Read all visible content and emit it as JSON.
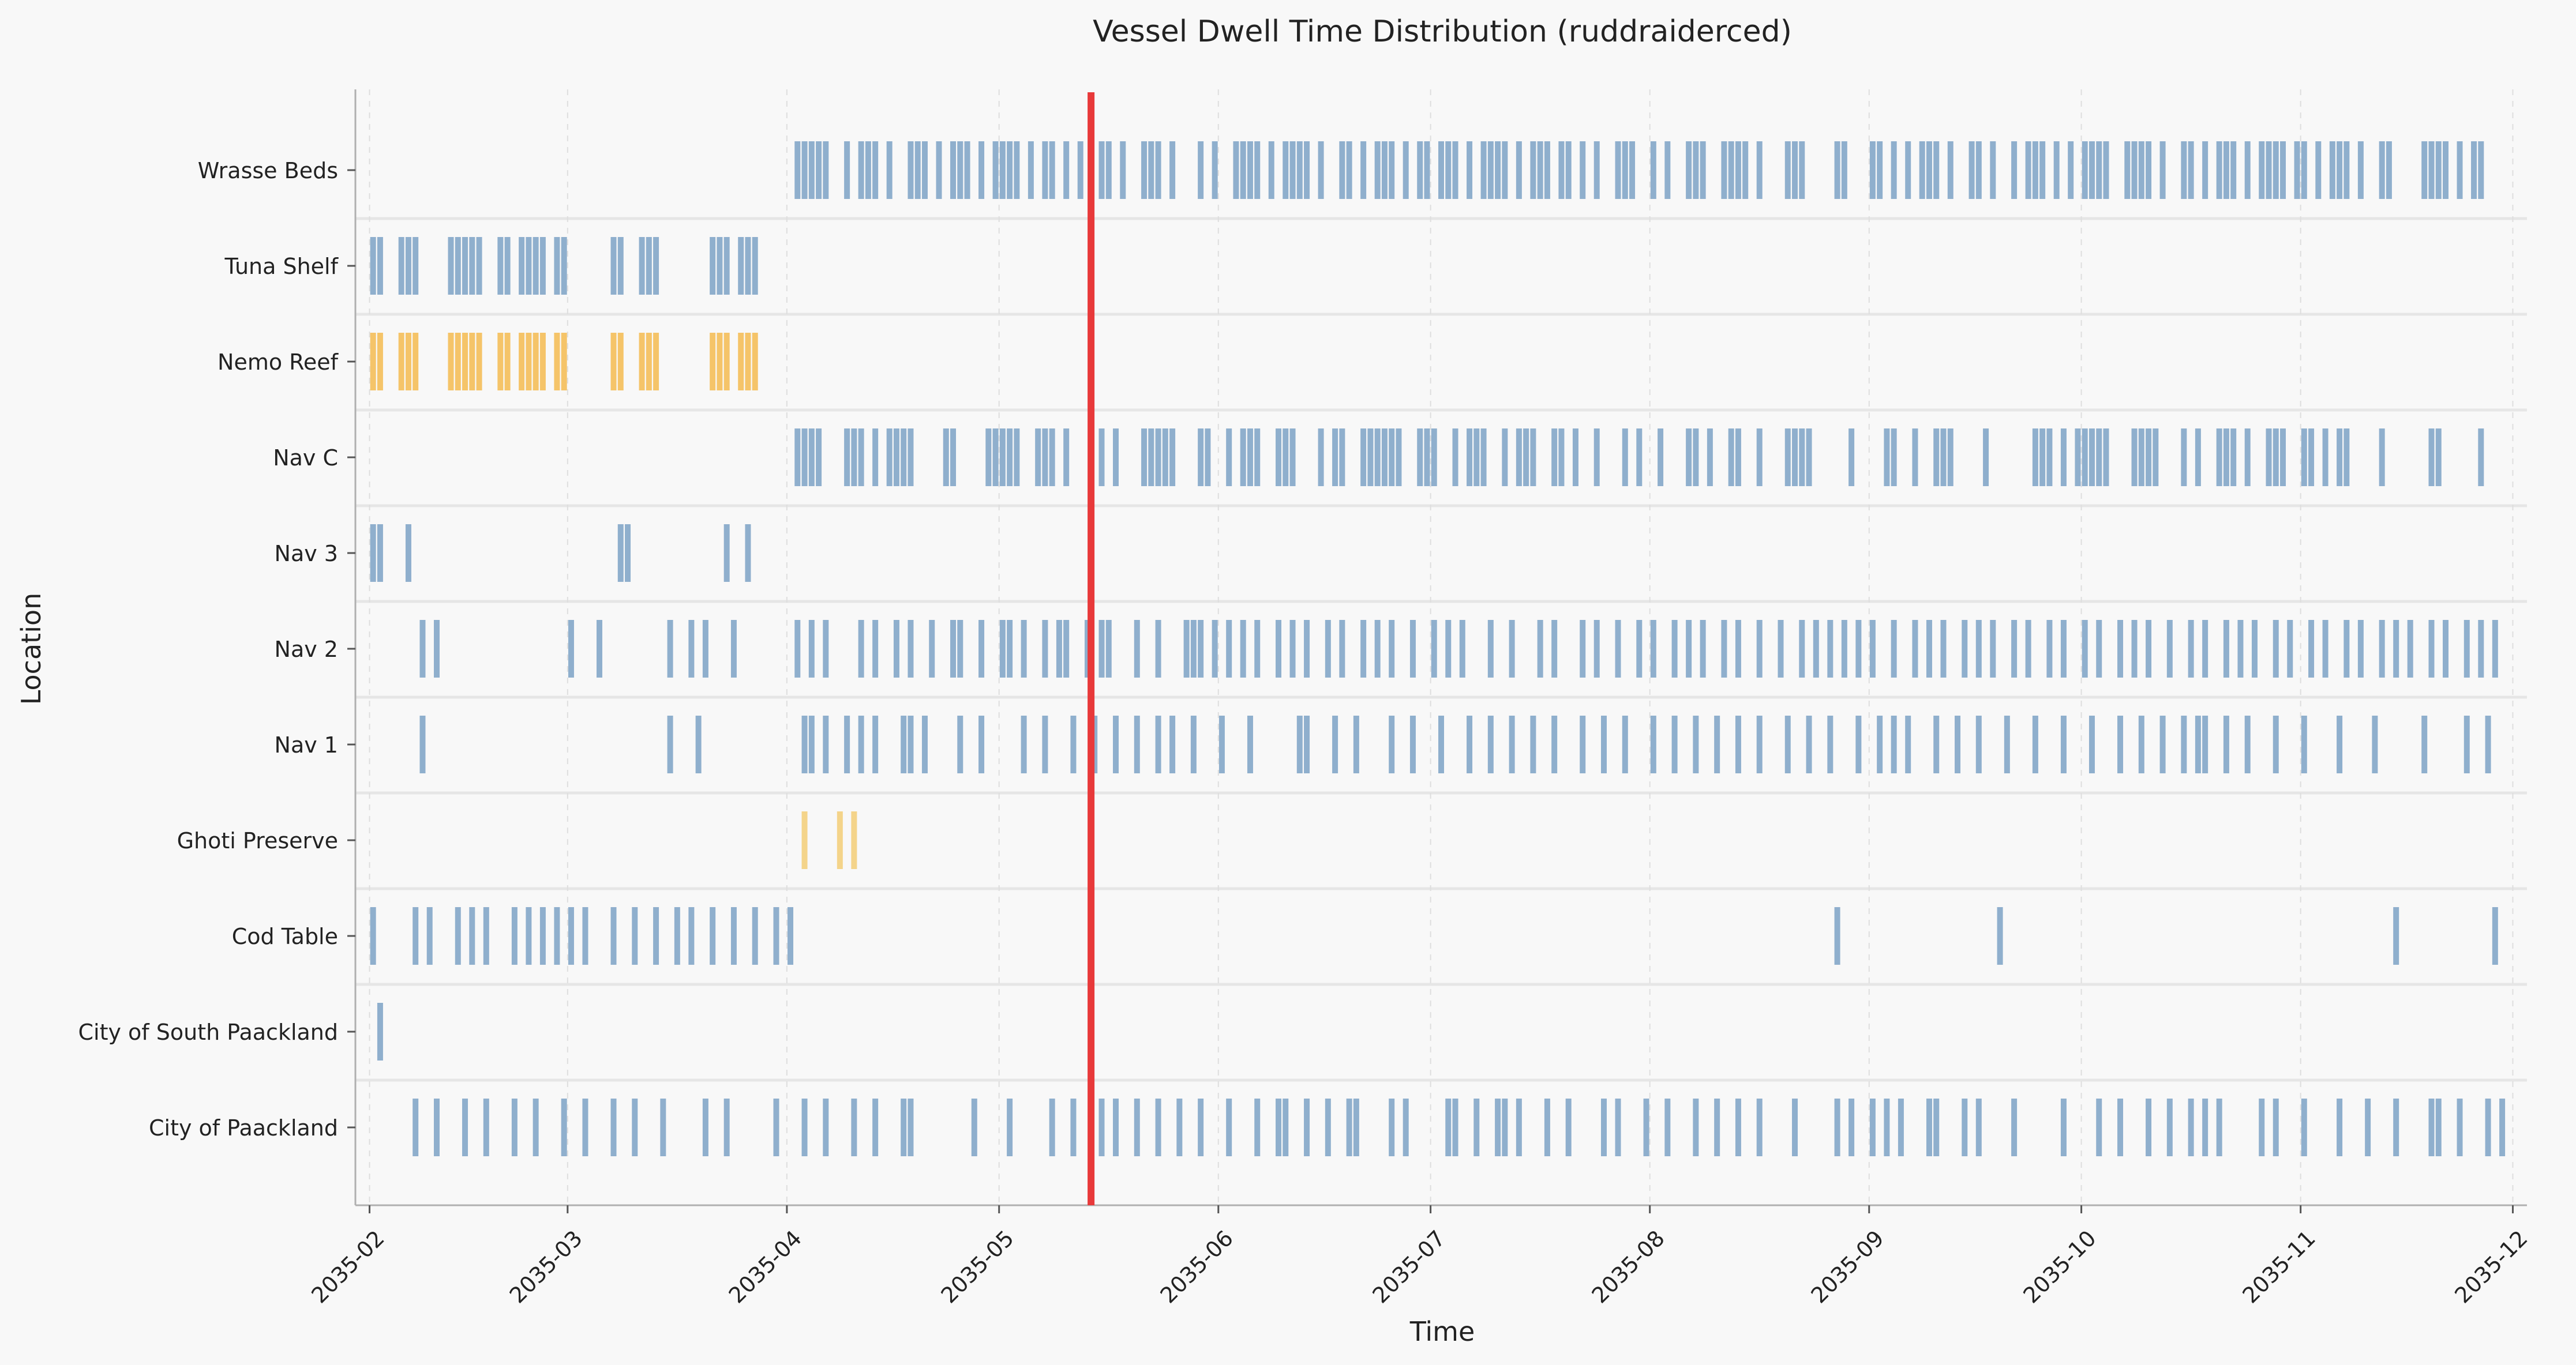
{
  "chart_data": {
    "type": "event-timeline",
    "title": "Vessel Dwell Time Distribution (ruddraiderced)",
    "xlabel": "Time",
    "ylabel": "Location",
    "xlim": [
      "2035-01-30",
      "2035-12-03"
    ],
    "x_ticks": [
      "2035-02",
      "2035-03",
      "2035-04",
      "2035-05",
      "2035-06",
      "2035-07",
      "2035-08",
      "2035-09",
      "2035-10",
      "2035-11",
      "2035-12"
    ],
    "grid": true,
    "current_time_marker": {
      "date": "2035-05-14",
      "color": "#e8393a"
    },
    "colors": {
      "default": "#4a7fb0",
      "highlight": "#f4a20a",
      "ghoti": "#f2bc41"
    },
    "categories": [
      "Wrasse Beds",
      "Tuna Shelf",
      "Nemo Reef",
      "Nav C",
      "Nav 3",
      "Nav 2",
      "Nav 1",
      "Ghoti Preserve",
      "Cod Table",
      "City of South Paackland",
      "City of Paackland"
    ],
    "series": [
      {
        "name": "Wrasse Beds",
        "color": "#4a7fb0",
        "events": [
          "2035-04-02",
          "2035-04-03",
          "2035-04-04",
          "2035-04-05",
          "2035-04-06",
          "2035-04-09",
          "2035-04-11",
          "2035-04-12",
          "2035-04-13",
          "2035-04-15",
          "2035-04-18",
          "2035-04-19",
          "2035-04-20",
          "2035-04-22",
          "2035-04-24",
          "2035-04-25",
          "2035-04-26",
          "2035-04-28",
          "2035-04-30",
          "2035-05-01",
          "2035-05-02",
          "2035-05-03",
          "2035-05-05",
          "2035-05-07",
          "2035-05-08",
          "2035-05-10",
          "2035-05-12",
          "2035-05-15",
          "2035-05-16",
          "2035-05-18",
          "2035-05-21",
          "2035-05-22",
          "2035-05-23",
          "2035-05-25",
          "2035-05-29",
          "2035-05-31",
          "2035-06-03",
          "2035-06-04",
          "2035-06-05",
          "2035-06-06",
          "2035-06-08",
          "2035-06-10",
          "2035-06-11",
          "2035-06-12",
          "2035-06-13",
          "2035-06-15",
          "2035-06-18",
          "2035-06-19",
          "2035-06-21",
          "2035-06-23",
          "2035-06-24",
          "2035-06-25",
          "2035-06-27",
          "2035-06-29",
          "2035-06-30",
          "2035-07-02",
          "2035-07-03",
          "2035-07-04",
          "2035-07-06",
          "2035-07-08",
          "2035-07-09",
          "2035-07-10",
          "2035-07-11",
          "2035-07-13",
          "2035-07-15",
          "2035-07-16",
          "2035-07-17",
          "2035-07-19",
          "2035-07-20",
          "2035-07-22",
          "2035-07-24",
          "2035-07-27",
          "2035-07-28",
          "2035-07-29",
          "2035-08-01",
          "2035-08-03",
          "2035-08-06",
          "2035-08-07",
          "2035-08-08",
          "2035-08-11",
          "2035-08-12",
          "2035-08-13",
          "2035-08-14",
          "2035-08-16",
          "2035-08-20",
          "2035-08-21",
          "2035-08-22",
          "2035-08-27",
          "2035-08-28",
          "2035-09-01",
          "2035-09-02",
          "2035-09-04",
          "2035-09-06",
          "2035-09-08",
          "2035-09-09",
          "2035-09-10",
          "2035-09-12",
          "2035-09-15",
          "2035-09-16",
          "2035-09-18",
          "2035-09-21",
          "2035-09-23",
          "2035-09-24",
          "2035-09-25",
          "2035-09-27",
          "2035-09-29",
          "2035-10-01",
          "2035-10-02",
          "2035-10-03",
          "2035-10-04",
          "2035-10-07",
          "2035-10-08",
          "2035-10-09",
          "2035-10-10",
          "2035-10-12",
          "2035-10-15",
          "2035-10-16",
          "2035-10-18",
          "2035-10-20",
          "2035-10-21",
          "2035-10-22",
          "2035-10-24",
          "2035-10-26",
          "2035-10-27",
          "2035-10-28",
          "2035-10-29",
          "2035-10-31",
          "2035-11-01",
          "2035-11-03",
          "2035-11-05",
          "2035-11-06",
          "2035-11-07",
          "2035-11-09",
          "2035-11-12",
          "2035-11-13",
          "2035-11-18",
          "2035-11-19",
          "2035-11-20",
          "2035-11-21",
          "2035-11-23",
          "2035-11-25",
          "2035-11-26"
        ]
      },
      {
        "name": "Tuna Shelf",
        "color": "#4a7fb0",
        "events": [
          "2035-02-01",
          "2035-02-02",
          "2035-02-05",
          "2035-02-06",
          "2035-02-07",
          "2035-02-12",
          "2035-02-13",
          "2035-02-14",
          "2035-02-15",
          "2035-02-16",
          "2035-02-19",
          "2035-02-20",
          "2035-02-22",
          "2035-02-23",
          "2035-02-24",
          "2035-02-25",
          "2035-02-27",
          "2035-02-28",
          "2035-03-07",
          "2035-03-08",
          "2035-03-11",
          "2035-03-12",
          "2035-03-13",
          "2035-03-21",
          "2035-03-22",
          "2035-03-23",
          "2035-03-25",
          "2035-03-26",
          "2035-03-27"
        ]
      },
      {
        "name": "Nemo Reef",
        "color": "#f4a20a",
        "events": [
          "2035-02-01",
          "2035-02-02",
          "2035-02-05",
          "2035-02-06",
          "2035-02-07",
          "2035-02-12",
          "2035-02-13",
          "2035-02-14",
          "2035-02-15",
          "2035-02-16",
          "2035-02-19",
          "2035-02-20",
          "2035-02-22",
          "2035-02-23",
          "2035-02-24",
          "2035-02-25",
          "2035-02-27",
          "2035-02-28",
          "2035-03-07",
          "2035-03-08",
          "2035-03-11",
          "2035-03-12",
          "2035-03-13",
          "2035-03-21",
          "2035-03-22",
          "2035-03-23",
          "2035-03-25",
          "2035-03-26",
          "2035-03-27"
        ]
      },
      {
        "name": "Nav C",
        "color": "#4a7fb0",
        "events": [
          "2035-04-02",
          "2035-04-03",
          "2035-04-04",
          "2035-04-05",
          "2035-04-09",
          "2035-04-10",
          "2035-04-11",
          "2035-04-13",
          "2035-04-15",
          "2035-04-16",
          "2035-04-17",
          "2035-04-18",
          "2035-04-23",
          "2035-04-24",
          "2035-04-29",
          "2035-04-30",
          "2035-05-01",
          "2035-05-02",
          "2035-05-03",
          "2035-05-06",
          "2035-05-07",
          "2035-05-08",
          "2035-05-10",
          "2035-05-15",
          "2035-05-17",
          "2035-05-21",
          "2035-05-22",
          "2035-05-23",
          "2035-05-24",
          "2035-05-25",
          "2035-05-29",
          "2035-05-30",
          "2035-06-02",
          "2035-06-04",
          "2035-06-05",
          "2035-06-06",
          "2035-06-09",
          "2035-06-10",
          "2035-06-11",
          "2035-06-15",
          "2035-06-17",
          "2035-06-18",
          "2035-06-21",
          "2035-06-22",
          "2035-06-23",
          "2035-06-24",
          "2035-06-25",
          "2035-06-26",
          "2035-06-29",
          "2035-06-30",
          "2035-07-01",
          "2035-07-04",
          "2035-07-06",
          "2035-07-07",
          "2035-07-08",
          "2035-07-11",
          "2035-07-13",
          "2035-07-14",
          "2035-07-15",
          "2035-07-18",
          "2035-07-19",
          "2035-07-21",
          "2035-07-24",
          "2035-07-28",
          "2035-07-30",
          "2035-08-02",
          "2035-08-06",
          "2035-08-07",
          "2035-08-09",
          "2035-08-12",
          "2035-08-13",
          "2035-08-16",
          "2035-08-20",
          "2035-08-21",
          "2035-08-22",
          "2035-08-23",
          "2035-08-29",
          "2035-09-03",
          "2035-09-04",
          "2035-09-07",
          "2035-09-10",
          "2035-09-11",
          "2035-09-12",
          "2035-09-17",
          "2035-09-24",
          "2035-09-25",
          "2035-09-26",
          "2035-09-28",
          "2035-09-30",
          "2035-10-01",
          "2035-10-02",
          "2035-10-03",
          "2035-10-04",
          "2035-10-08",
          "2035-10-09",
          "2035-10-10",
          "2035-10-11",
          "2035-10-15",
          "2035-10-17",
          "2035-10-20",
          "2035-10-21",
          "2035-10-22",
          "2035-10-24",
          "2035-10-27",
          "2035-10-28",
          "2035-10-29",
          "2035-11-01",
          "2035-11-02",
          "2035-11-04",
          "2035-11-06",
          "2035-11-07",
          "2035-11-12",
          "2035-11-19",
          "2035-11-20",
          "2035-11-26"
        ]
      },
      {
        "name": "Nav 3",
        "color": "#4a7fb0",
        "events": [
          "2035-02-01",
          "2035-02-02",
          "2035-02-06",
          "2035-03-08",
          "2035-03-09",
          "2035-03-23",
          "2035-03-26"
        ]
      },
      {
        "name": "Nav 2",
        "color": "#4a7fb0",
        "events": [
          "2035-02-08",
          "2035-02-10",
          "2035-03-01",
          "2035-03-05",
          "2035-03-15",
          "2035-03-18",
          "2035-03-20",
          "2035-03-24",
          "2035-04-02",
          "2035-04-04",
          "2035-04-06",
          "2035-04-11",
          "2035-04-13",
          "2035-04-16",
          "2035-04-18",
          "2035-04-21",
          "2035-04-24",
          "2035-04-25",
          "2035-04-28",
          "2035-05-01",
          "2035-05-02",
          "2035-05-04",
          "2035-05-07",
          "2035-05-09",
          "2035-05-10",
          "2035-05-13",
          "2035-05-15",
          "2035-05-16",
          "2035-05-20",
          "2035-05-23",
          "2035-05-27",
          "2035-05-28",
          "2035-05-29",
          "2035-05-31",
          "2035-06-02",
          "2035-06-04",
          "2035-06-06",
          "2035-06-09",
          "2035-06-11",
          "2035-06-13",
          "2035-06-16",
          "2035-06-18",
          "2035-06-21",
          "2035-06-23",
          "2035-06-25",
          "2035-06-28",
          "2035-07-01",
          "2035-07-03",
          "2035-07-05",
          "2035-07-09",
          "2035-07-12",
          "2035-07-16",
          "2035-07-18",
          "2035-07-22",
          "2035-07-24",
          "2035-07-27",
          "2035-07-30",
          "2035-08-01",
          "2035-08-04",
          "2035-08-06",
          "2035-08-08",
          "2035-08-11",
          "2035-08-13",
          "2035-08-16",
          "2035-08-19",
          "2035-08-22",
          "2035-08-24",
          "2035-08-26",
          "2035-08-28",
          "2035-08-30",
          "2035-09-01",
          "2035-09-04",
          "2035-09-07",
          "2035-09-09",
          "2035-09-11",
          "2035-09-14",
          "2035-09-16",
          "2035-09-18",
          "2035-09-21",
          "2035-09-23",
          "2035-09-26",
          "2035-09-28",
          "2035-10-01",
          "2035-10-03",
          "2035-10-06",
          "2035-10-08",
          "2035-10-10",
          "2035-10-13",
          "2035-10-16",
          "2035-10-18",
          "2035-10-21",
          "2035-10-23",
          "2035-10-25",
          "2035-10-28",
          "2035-10-30",
          "2035-11-02",
          "2035-11-04",
          "2035-11-07",
          "2035-11-09",
          "2035-11-12",
          "2035-11-14",
          "2035-11-16",
          "2035-11-19",
          "2035-11-21",
          "2035-11-24",
          "2035-11-26",
          "2035-11-28"
        ]
      },
      {
        "name": "Nav 1",
        "color": "#4a7fb0",
        "events": [
          "2035-02-08",
          "2035-03-15",
          "2035-03-19",
          "2035-04-03",
          "2035-04-04",
          "2035-04-06",
          "2035-04-09",
          "2035-04-11",
          "2035-04-13",
          "2035-04-17",
          "2035-04-18",
          "2035-04-20",
          "2035-04-25",
          "2035-04-28",
          "2035-05-04",
          "2035-05-07",
          "2035-05-11",
          "2035-05-14",
          "2035-05-17",
          "2035-05-20",
          "2035-05-23",
          "2035-05-25",
          "2035-05-28",
          "2035-06-01",
          "2035-06-05",
          "2035-06-12",
          "2035-06-13",
          "2035-06-17",
          "2035-06-20",
          "2035-06-25",
          "2035-06-28",
          "2035-07-02",
          "2035-07-06",
          "2035-07-09",
          "2035-07-12",
          "2035-07-15",
          "2035-07-18",
          "2035-07-22",
          "2035-07-25",
          "2035-07-28",
          "2035-08-01",
          "2035-08-04",
          "2035-08-07",
          "2035-08-10",
          "2035-08-13",
          "2035-08-16",
          "2035-08-20",
          "2035-08-23",
          "2035-08-26",
          "2035-08-30",
          "2035-09-02",
          "2035-09-04",
          "2035-09-06",
          "2035-09-10",
          "2035-09-13",
          "2035-09-16",
          "2035-09-20",
          "2035-09-24",
          "2035-09-28",
          "2035-10-02",
          "2035-10-06",
          "2035-10-09",
          "2035-10-12",
          "2035-10-15",
          "2035-10-17",
          "2035-10-18",
          "2035-10-21",
          "2035-10-24",
          "2035-10-28",
          "2035-11-01",
          "2035-11-06",
          "2035-11-11",
          "2035-11-18",
          "2035-11-24",
          "2035-11-27"
        ]
      },
      {
        "name": "Ghoti Preserve",
        "color": "#f2bc41",
        "events": [
          "2035-04-03",
          "2035-04-08",
          "2035-04-10"
        ]
      },
      {
        "name": "Cod Table",
        "color": "#4a7fb0",
        "events": [
          "2035-02-01",
          "2035-02-07",
          "2035-02-09",
          "2035-02-13",
          "2035-02-15",
          "2035-02-17",
          "2035-02-21",
          "2035-02-23",
          "2035-02-25",
          "2035-02-27",
          "2035-03-01",
          "2035-03-03",
          "2035-03-07",
          "2035-03-10",
          "2035-03-13",
          "2035-03-16",
          "2035-03-18",
          "2035-03-21",
          "2035-03-24",
          "2035-03-27",
          "2035-03-30",
          "2035-04-01",
          "2035-08-27",
          "2035-09-19",
          "2035-11-14",
          "2035-11-28"
        ]
      },
      {
        "name": "City of South Paackland",
        "color": "#4a7fb0",
        "events": [
          "2035-02-02"
        ]
      },
      {
        "name": "City of Paackland",
        "color": "#4a7fb0",
        "events": [
          "2035-02-07",
          "2035-02-10",
          "2035-02-14",
          "2035-02-17",
          "2035-02-21",
          "2035-02-24",
          "2035-02-28",
          "2035-03-03",
          "2035-03-07",
          "2035-03-10",
          "2035-03-14",
          "2035-03-20",
          "2035-03-23",
          "2035-03-30",
          "2035-04-03",
          "2035-04-06",
          "2035-04-10",
          "2035-04-13",
          "2035-04-17",
          "2035-04-18",
          "2035-04-27",
          "2035-05-02",
          "2035-05-08",
          "2035-05-11",
          "2035-05-15",
          "2035-05-17",
          "2035-05-20",
          "2035-05-23",
          "2035-05-26",
          "2035-05-29",
          "2035-06-02",
          "2035-06-06",
          "2035-06-09",
          "2035-06-10",
          "2035-06-13",
          "2035-06-16",
          "2035-06-19",
          "2035-06-20",
          "2035-06-25",
          "2035-06-27",
          "2035-07-03",
          "2035-07-04",
          "2035-07-07",
          "2035-07-10",
          "2035-07-11",
          "2035-07-13",
          "2035-07-17",
          "2035-07-20",
          "2035-07-25",
          "2035-07-27",
          "2035-07-31",
          "2035-08-03",
          "2035-08-07",
          "2035-08-10",
          "2035-08-13",
          "2035-08-16",
          "2035-08-21",
          "2035-08-27",
          "2035-08-29",
          "2035-09-01",
          "2035-09-03",
          "2035-09-05",
          "2035-09-09",
          "2035-09-10",
          "2035-09-14",
          "2035-09-16",
          "2035-09-21",
          "2035-09-28",
          "2035-10-03",
          "2035-10-06",
          "2035-10-10",
          "2035-10-13",
          "2035-10-16",
          "2035-10-18",
          "2035-10-20",
          "2035-10-26",
          "2035-10-28",
          "2035-11-01",
          "2035-11-06",
          "2035-11-10",
          "2035-11-14",
          "2035-11-19",
          "2035-11-20",
          "2035-11-23",
          "2035-11-27",
          "2035-11-29"
        ]
      }
    ]
  }
}
